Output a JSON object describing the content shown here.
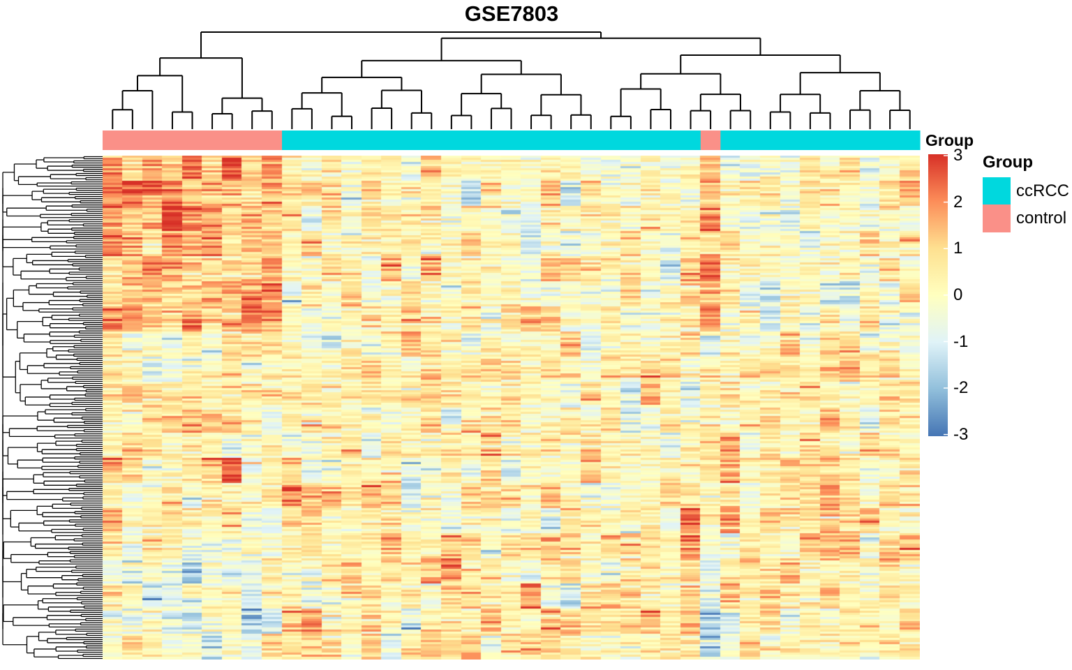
{
  "chart_data": {
    "type": "heatmap",
    "title": "GSE7803",
    "annotation_label": "Group",
    "legend": {
      "title": "Group",
      "entries": [
        {
          "label": "ccRCC",
          "color": "#00D8DE"
        },
        {
          "label": "control",
          "color": "#FA9088"
        }
      ],
      "placement": "right"
    },
    "color_scale": {
      "min": -3,
      "max": 3,
      "ticks": [
        "3",
        "2",
        "1",
        "0",
        "-1",
        "-2",
        "-3"
      ],
      "colors": [
        "#4575B4",
        "#91BFDB",
        "#E0F3F8",
        "#FFFFBF",
        "#FEE090",
        "#FC8D59",
        "#D73027"
      ]
    },
    "columns": {
      "count": 41,
      "groups": [
        "control",
        "control",
        "control",
        "control",
        "control",
        "control",
        "control",
        "control",
        "control",
        "ccRCC",
        "ccRCC",
        "ccRCC",
        "ccRCC",
        "ccRCC",
        "ccRCC",
        "ccRCC",
        "ccRCC",
        "ccRCC",
        "ccRCC",
        "ccRCC",
        "ccRCC",
        "ccRCC",
        "ccRCC",
        "ccRCC",
        "ccRCC",
        "ccRCC",
        "ccRCC",
        "ccRCC",
        "ccRCC",
        "ccRCC",
        "control",
        "ccRCC",
        "ccRCC",
        "ccRCC",
        "ccRCC",
        "ccRCC",
        "ccRCC",
        "ccRCC",
        "ccRCC",
        "ccRCC",
        "ccRCC"
      ]
    },
    "rows": {
      "count": 240,
      "dendrogram": true
    },
    "column_dendrogram": true
  }
}
